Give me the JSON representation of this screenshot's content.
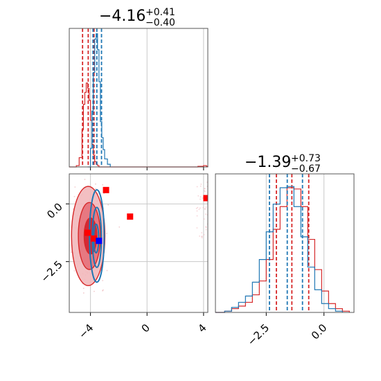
{
  "figure": {
    "type": "corner"
  },
  "colors": {
    "red": "#d62728",
    "red_fill_light": "#f2b8bb",
    "red_fill_mid": "#e5707a",
    "red_fill_dark": "#d11f2c",
    "blue": "#1f77b4",
    "grid": "#c8c8c8",
    "marker_red": "#ff0000",
    "marker_blue": "#0000ff"
  },
  "titles": {
    "param1": {
      "value": "−4.16",
      "plus": "+0.41",
      "minus": "−0.40"
    },
    "param2": {
      "value": "−1.39",
      "plus": "+0.73",
      "minus": "−0.67"
    }
  },
  "chart_data": [
    {
      "type": "histogram",
      "panel": "marginal-param1",
      "xlim": [
        -5.5,
        4.3
      ],
      "x_ticks": [
        -4,
        0,
        4
      ],
      "x_tick_labels": [
        "−4",
        "0",
        "4"
      ],
      "grid": true,
      "series": [
        {
          "color": "red",
          "x": [
            -5.5,
            -5.0,
            -4.8,
            -4.6,
            -4.5,
            -4.4,
            -4.3,
            -4.2,
            -4.1,
            -4.0,
            -3.9,
            -3.8,
            -3.7,
            -3.6,
            -3.5,
            -3.4,
            -3.3,
            -3.2,
            3.4,
            3.6,
            3.8,
            4.0,
            4.2,
            4.3
          ],
          "y": [
            0.0,
            0.01,
            0.07,
            0.28,
            0.47,
            0.56,
            0.63,
            0.59,
            0.5,
            0.35,
            0.17,
            0.09,
            0.04,
            0.02,
            0.01,
            0.0,
            0.0,
            0.0,
            0.0,
            0.005,
            0.005,
            0.01,
            0.005,
            0.0
          ],
          "quantiles": [
            -4.56,
            -4.16,
            -3.75
          ]
        },
        {
          "color": "blue",
          "x": [
            -4.2,
            -4.0,
            -3.9,
            -3.8,
            -3.7,
            -3.6,
            -3.5,
            -3.4,
            -3.3,
            -3.2,
            -3.1,
            -3.0,
            -2.8,
            -2.6
          ],
          "y": [
            0.0,
            0.14,
            0.42,
            0.71,
            0.96,
            1.0,
            0.88,
            0.64,
            0.34,
            0.22,
            0.13,
            0.06,
            0.02,
            0.0
          ],
          "quantiles": [
            -3.82,
            -3.55,
            -3.22
          ]
        }
      ]
    },
    {
      "type": "scatter",
      "panel": "joint-param1-param2",
      "xlim": [
        -5.5,
        4.3
      ],
      "ylim": [
        -4.7,
        1.3
      ],
      "x_ticks": [
        -4,
        0,
        4
      ],
      "x_tick_labels": [
        "−4",
        "0",
        "4"
      ],
      "y_ticks": [
        -2.5,
        0.0
      ],
      "y_tick_labels": [
        "−2.5",
        "0.0"
      ],
      "grid": true,
      "red_contours": [
        {
          "level": "outer",
          "cx": -4.16,
          "cy": -1.39,
          "rx": 1.18,
          "ry": 2.15
        },
        {
          "level": "middle",
          "cx": -4.08,
          "cy": -1.39,
          "rx": 0.78,
          "ry": 1.45
        },
        {
          "level": "inner",
          "cx": -4.0,
          "cy": -1.39,
          "rx": 0.45,
          "ry": 0.78
        }
      ],
      "blue_contours": [
        {
          "level": "outer",
          "cx": -3.55,
          "cy": -1.39,
          "rx": 0.52,
          "ry": 2.0
        },
        {
          "level": "middle",
          "cx": -3.55,
          "cy": -1.45,
          "rx": 0.32,
          "ry": 1.3
        },
        {
          "level": "inner",
          "cx": -3.6,
          "cy": -1.5,
          "rx": 0.18,
          "ry": 0.62
        }
      ],
      "red_markers": [
        {
          "x": -2.9,
          "y": 0.6
        },
        {
          "x": -1.2,
          "y": -0.55
        },
        {
          "x": 4.2,
          "y": 0.25
        },
        {
          "x": -4.2,
          "y": -1.25
        },
        {
          "x": -3.75,
          "y": -1.5
        }
      ],
      "blue_markers": [
        {
          "x": -3.4,
          "y": -1.6
        }
      ],
      "outlier_cloud": {
        "x": [
          3.5,
          4.3
        ],
        "y": [
          -1.5,
          1.0
        ]
      }
    },
    {
      "type": "histogram",
      "panel": "marginal-param2",
      "xlim": [
        -4.7,
        1.3
      ],
      "x_ticks": [
        -2.5,
        0.0
      ],
      "x_tick_labels": [
        "−2.5",
        "0.0"
      ],
      "grid": true,
      "series": [
        {
          "color": "red",
          "x": [
            -4.7,
            -4.3,
            -4.0,
            -3.7,
            -3.4,
            -3.1,
            -2.8,
            -2.5,
            -2.2,
            -1.9,
            -1.6,
            -1.3,
            -1.0,
            -0.7,
            -0.4,
            -0.1,
            0.2,
            0.5,
            0.8,
            1.1
          ],
          "y": [
            0.0,
            0.01,
            0.03,
            0.05,
            0.08,
            0.14,
            0.25,
            0.42,
            0.66,
            0.84,
            0.99,
            0.98,
            0.84,
            0.58,
            0.34,
            0.17,
            0.07,
            0.03,
            0.01,
            0.0
          ],
          "quantiles": [
            -2.06,
            -1.39,
            -0.66
          ]
        },
        {
          "color": "blue",
          "x": [
            -4.7,
            -4.3,
            -4.0,
            -3.7,
            -3.4,
            -3.1,
            -2.8,
            -2.5,
            -2.2,
            -1.9,
            -1.6,
            -1.3,
            -1.0,
            -0.7,
            -0.4,
            -0.1,
            0.2,
            0.5,
            0.8
          ],
          "y": [
            0.0,
            0.01,
            0.04,
            0.08,
            0.13,
            0.24,
            0.42,
            0.64,
            0.86,
            0.99,
            1.0,
            0.84,
            0.6,
            0.36,
            0.18,
            0.07,
            0.03,
            0.01,
            0.0
          ],
          "quantiles": [
            -2.36,
            -1.59,
            -0.93
          ]
        }
      ]
    }
  ]
}
